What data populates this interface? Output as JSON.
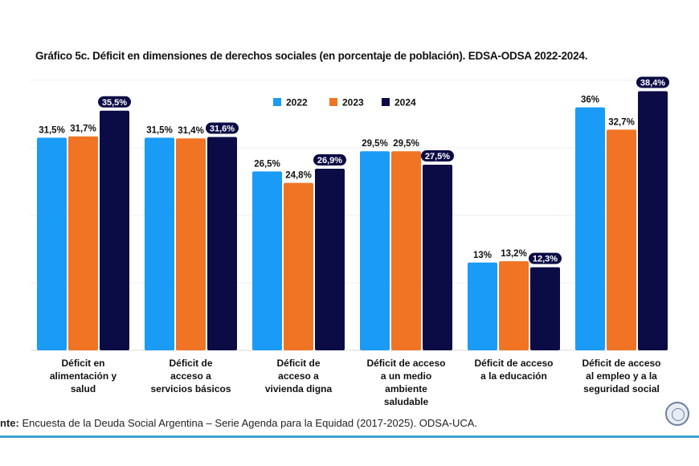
{
  "chart_data": {
    "type": "bar",
    "title": "Gráfico 5c. Déficit en dimensiones de derechos sociales (en porcentaje de población). EDSA-ODSA 2022-2024.",
    "categories": [
      [
        "Déficit en",
        "alimentación y",
        "salud"
      ],
      [
        "Déficit de",
        "acceso a",
        "servicios básicos"
      ],
      [
        "Déficit de",
        "acceso a",
        "vivienda digna"
      ],
      [
        "Déficit de acceso",
        "a un medio",
        "ambiente",
        "saludable"
      ],
      [
        "Déficit de acceso",
        "a la educación"
      ],
      [
        "Déficit de acceso",
        "al empleo y a la",
        "seguridad social"
      ]
    ],
    "series": [
      {
        "name": "2022",
        "color": "#1a9bf5",
        "values": [
          31.5,
          31.5,
          26.5,
          29.5,
          13,
          36
        ],
        "labels": [
          "31,5%",
          "31,5%",
          "26,5%",
          "29,5%",
          "13%",
          "36%"
        ]
      },
      {
        "name": "2023",
        "color": "#f07424",
        "values": [
          31.7,
          31.4,
          24.8,
          29.5,
          13.2,
          32.7
        ],
        "labels": [
          "31,7%",
          "31,4%",
          "24,8%",
          "29,5%",
          "13,2%",
          "32,7%"
        ]
      },
      {
        "name": "2024",
        "color": "#0b0b45",
        "values": [
          35.5,
          31.6,
          26.9,
          27.5,
          12.3,
          38.4
        ],
        "labels": [
          "35,5%",
          "31,6%",
          "26,9%",
          "27,5%",
          "12,3%",
          "38,4%"
        ]
      }
    ],
    "ylim": [
      0,
      40
    ],
    "grid": true,
    "legend": "top-center",
    "xlabel": "",
    "ylabel": ""
  },
  "footer": {
    "prefix": "nte:",
    "text": " Encuesta de la Deuda Social Argentina – Serie Agenda para la Equidad (2017-2025). ODSA-UCA."
  }
}
